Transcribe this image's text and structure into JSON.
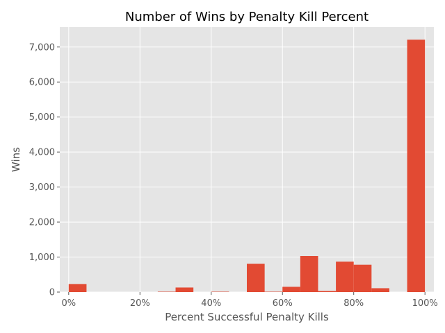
{
  "chart_data": {
    "type": "bar",
    "title": "Number of Wins by Penalty Kill Percent",
    "xlabel": "Percent Successful Penalty Kills",
    "ylabel": "Wins",
    "bin_width": 5,
    "x": [
      0,
      5,
      10,
      15,
      20,
      25,
      30,
      35,
      40,
      45,
      50,
      55,
      60,
      65,
      70,
      75,
      80,
      85,
      90,
      95
    ],
    "values": [
      230,
      0,
      0,
      0,
      0,
      10,
      130,
      0,
      10,
      0,
      810,
      10,
      150,
      1030,
      30,
      870,
      780,
      110,
      0,
      7210
    ],
    "xlim": [
      -2.5,
      102.5
    ],
    "ylim": [
      0,
      7570
    ],
    "x_ticks": [
      0,
      20,
      40,
      60,
      80,
      100
    ],
    "x_tick_labels": [
      "0%",
      "20%",
      "40%",
      "60%",
      "80%",
      "100%"
    ],
    "y_ticks": [
      0,
      1000,
      2000,
      3000,
      4000,
      5000,
      6000,
      7000
    ],
    "y_tick_labels": [
      "0",
      "1,000",
      "2,000",
      "3,000",
      "4,000",
      "5,000",
      "6,000",
      "7,000"
    ],
    "grid": true,
    "colors": {
      "bar": "#e24a33",
      "background": "#e5e5e5",
      "grid": "#ffffff"
    }
  }
}
